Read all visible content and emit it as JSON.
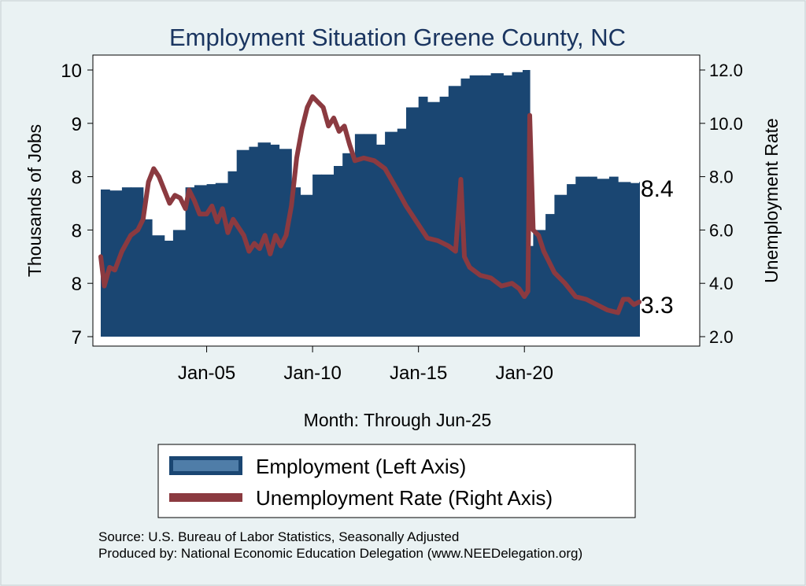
{
  "chart_data": {
    "type": "bar+line",
    "title": "Employment Situation Greene  County, NC",
    "xlabel": "Month: Through Jun-25",
    "ylabel_left": "Thousands of Jobs",
    "ylabel_right": "Unemployment Rate",
    "x_ticks": [
      "Jan-05",
      "Jan-10",
      "Jan-15",
      "Jan-20"
    ],
    "y_left_ticks": [
      "7",
      "8",
      "8",
      "8",
      "9",
      "10"
    ],
    "y_left_tick_values": [
      7.0,
      7.5,
      8.0,
      8.5,
      9.0,
      9.5
    ],
    "y_left_range": [
      7.0,
      9.5
    ],
    "y_right_ticks": [
      "2.0",
      "4.0",
      "6.0",
      "8.0",
      "10.0",
      "12.0"
    ],
    "y_right_range": [
      2.0,
      12.0
    ],
    "x_range": [
      "Jan-00",
      "Jun-25"
    ],
    "grid": false,
    "legend_position": "bottom",
    "end_labels": {
      "employment": "8.4",
      "unemployment": "3.3"
    },
    "colors": {
      "employment": "#1a4672",
      "employment_legend": "#4f7da8",
      "unemployment": "#8b3a40",
      "title": "#1a3560",
      "background": "#eaf2f3",
      "plot_bg": "#ffffff"
    },
    "series": [
      {
        "name": "Employment (Left Axis)",
        "type": "bar",
        "points": [
          [
            "2000-01",
            8.38
          ],
          [
            "2000-06",
            8.37
          ],
          [
            "2001-01",
            8.4
          ],
          [
            "2001-06",
            8.4
          ],
          [
            "2002-01",
            8.1
          ],
          [
            "2002-06",
            7.95
          ],
          [
            "2003-01",
            7.9
          ],
          [
            "2003-06",
            8.0
          ],
          [
            "2004-01",
            8.4
          ],
          [
            "2004-06",
            8.42
          ],
          [
            "2005-01",
            8.43
          ],
          [
            "2005-06",
            8.44
          ],
          [
            "2006-01",
            8.55
          ],
          [
            "2006-06",
            8.75
          ],
          [
            "2007-01",
            8.78
          ],
          [
            "2007-06",
            8.82
          ],
          [
            "2008-01",
            8.8
          ],
          [
            "2008-06",
            8.76
          ],
          [
            "2009-01",
            8.4
          ],
          [
            "2009-06",
            8.33
          ],
          [
            "2010-01",
            8.52
          ],
          [
            "2010-06",
            8.52
          ],
          [
            "2011-01",
            8.6
          ],
          [
            "2011-06",
            8.72
          ],
          [
            "2012-01",
            8.9
          ],
          [
            "2012-06",
            8.9
          ],
          [
            "2013-01",
            8.8
          ],
          [
            "2013-06",
            8.92
          ],
          [
            "2014-01",
            8.95
          ],
          [
            "2014-06",
            9.15
          ],
          [
            "2015-01",
            9.25
          ],
          [
            "2015-06",
            9.2
          ],
          [
            "2016-01",
            9.25
          ],
          [
            "2016-06",
            9.35
          ],
          [
            "2017-01",
            9.42
          ],
          [
            "2017-06",
            9.45
          ],
          [
            "2018-01",
            9.45
          ],
          [
            "2018-06",
            9.47
          ],
          [
            "2019-01",
            9.45
          ],
          [
            "2019-06",
            9.48
          ],
          [
            "2019-12",
            9.5
          ],
          [
            "2020-04",
            7.85
          ],
          [
            "2020-06",
            8.0
          ],
          [
            "2021-01",
            8.15
          ],
          [
            "2021-06",
            8.33
          ],
          [
            "2022-01",
            8.43
          ],
          [
            "2022-06",
            8.5
          ],
          [
            "2023-01",
            8.5
          ],
          [
            "2023-06",
            8.48
          ],
          [
            "2024-01",
            8.5
          ],
          [
            "2024-06",
            8.45
          ],
          [
            "2025-01",
            8.44
          ],
          [
            "2025-06",
            8.45
          ]
        ]
      },
      {
        "name": "Unemployment Rate (Right Axis)",
        "type": "line",
        "points": [
          [
            "2000-01",
            5.0
          ],
          [
            "2000-03",
            3.9
          ],
          [
            "2000-06",
            4.6
          ],
          [
            "2000-09",
            4.5
          ],
          [
            "2001-01",
            5.2
          ],
          [
            "2001-06",
            5.8
          ],
          [
            "2001-10",
            6.0
          ],
          [
            "2002-01",
            6.4
          ],
          [
            "2002-04",
            7.8
          ],
          [
            "2002-07",
            8.3
          ],
          [
            "2002-10",
            8.0
          ],
          [
            "2003-01",
            7.5
          ],
          [
            "2003-04",
            7.0
          ],
          [
            "2003-07",
            7.3
          ],
          [
            "2003-10",
            7.2
          ],
          [
            "2004-01",
            6.8
          ],
          [
            "2004-03",
            7.5
          ],
          [
            "2004-06",
            7.1
          ],
          [
            "2004-09",
            6.6
          ],
          [
            "2005-01",
            6.6
          ],
          [
            "2005-04",
            6.9
          ],
          [
            "2005-07",
            6.3
          ],
          [
            "2005-10",
            6.8
          ],
          [
            "2006-01",
            5.9
          ],
          [
            "2006-04",
            6.4
          ],
          [
            "2006-07",
            6.1
          ],
          [
            "2006-10",
            5.8
          ],
          [
            "2007-01",
            5.2
          ],
          [
            "2007-04",
            5.5
          ],
          [
            "2007-07",
            5.3
          ],
          [
            "2007-10",
            5.8
          ],
          [
            "2008-01",
            5.1
          ],
          [
            "2008-04",
            5.8
          ],
          [
            "2008-07",
            5.4
          ],
          [
            "2008-10",
            5.8
          ],
          [
            "2009-01",
            6.9
          ],
          [
            "2009-04",
            8.7
          ],
          [
            "2009-07",
            9.8
          ],
          [
            "2009-10",
            10.6
          ],
          [
            "2010-01",
            11.0
          ],
          [
            "2010-04",
            10.8
          ],
          [
            "2010-07",
            10.6
          ],
          [
            "2010-10",
            9.9
          ],
          [
            "2011-01",
            10.2
          ],
          [
            "2011-04",
            9.7
          ],
          [
            "2011-07",
            9.9
          ],
          [
            "2011-10",
            9.2
          ],
          [
            "2012-01",
            8.6
          ],
          [
            "2012-06",
            8.7
          ],
          [
            "2012-12",
            8.6
          ],
          [
            "2013-06",
            8.3
          ],
          [
            "2014-01",
            7.5
          ],
          [
            "2014-06",
            6.9
          ],
          [
            "2014-12",
            6.3
          ],
          [
            "2015-06",
            5.7
          ],
          [
            "2015-12",
            5.6
          ],
          [
            "2016-06",
            5.4
          ],
          [
            "2016-10",
            5.2
          ],
          [
            "2017-01",
            7.9
          ],
          [
            "2017-03",
            5.0
          ],
          [
            "2017-06",
            4.6
          ],
          [
            "2017-12",
            4.3
          ],
          [
            "2018-06",
            4.2
          ],
          [
            "2018-12",
            3.9
          ],
          [
            "2019-06",
            4.0
          ],
          [
            "2019-10",
            3.8
          ],
          [
            "2020-01",
            3.5
          ],
          [
            "2020-03",
            3.7
          ],
          [
            "2020-04",
            10.3
          ],
          [
            "2020-06",
            6.0
          ],
          [
            "2020-09",
            5.8
          ],
          [
            "2020-12",
            5.2
          ],
          [
            "2021-06",
            4.4
          ],
          [
            "2021-12",
            4.0
          ],
          [
            "2022-06",
            3.5
          ],
          [
            "2022-12",
            3.4
          ],
          [
            "2023-06",
            3.2
          ],
          [
            "2023-12",
            3.0
          ],
          [
            "2024-06",
            2.9
          ],
          [
            "2024-09",
            3.4
          ],
          [
            "2024-12",
            3.4
          ],
          [
            "2025-03",
            3.2
          ],
          [
            "2025-06",
            3.3
          ]
        ]
      }
    ]
  },
  "source_line_1": "Source: U.S. Bureau of Labor Statistics, Seasonally Adjusted",
  "source_line_2": "Produced by: National Economic Education Delegation (www.NEEDelegation.org)"
}
